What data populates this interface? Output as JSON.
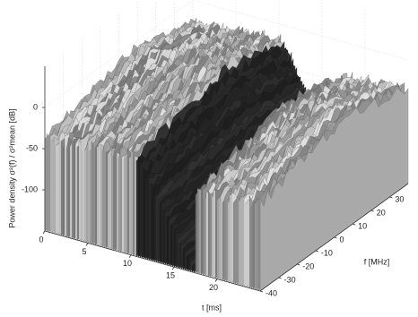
{
  "chart_data": {
    "type": "waterfall",
    "xlabel": "t [ms]",
    "ylabel": "f [MHz]",
    "zlabel": "Power density σ²(f) / σ²mean [dB]",
    "xlim": [
      0,
      25
    ],
    "xticks": [
      0,
      5,
      10,
      15,
      20
    ],
    "ylim": [
      -40,
      40
    ],
    "yticks": [
      -40,
      -30,
      -20,
      -10,
      0,
      10,
      20,
      30
    ],
    "zlim": [
      -150,
      50
    ],
    "zticks": [
      -100,
      -50,
      0
    ],
    "grid": true
  }
}
